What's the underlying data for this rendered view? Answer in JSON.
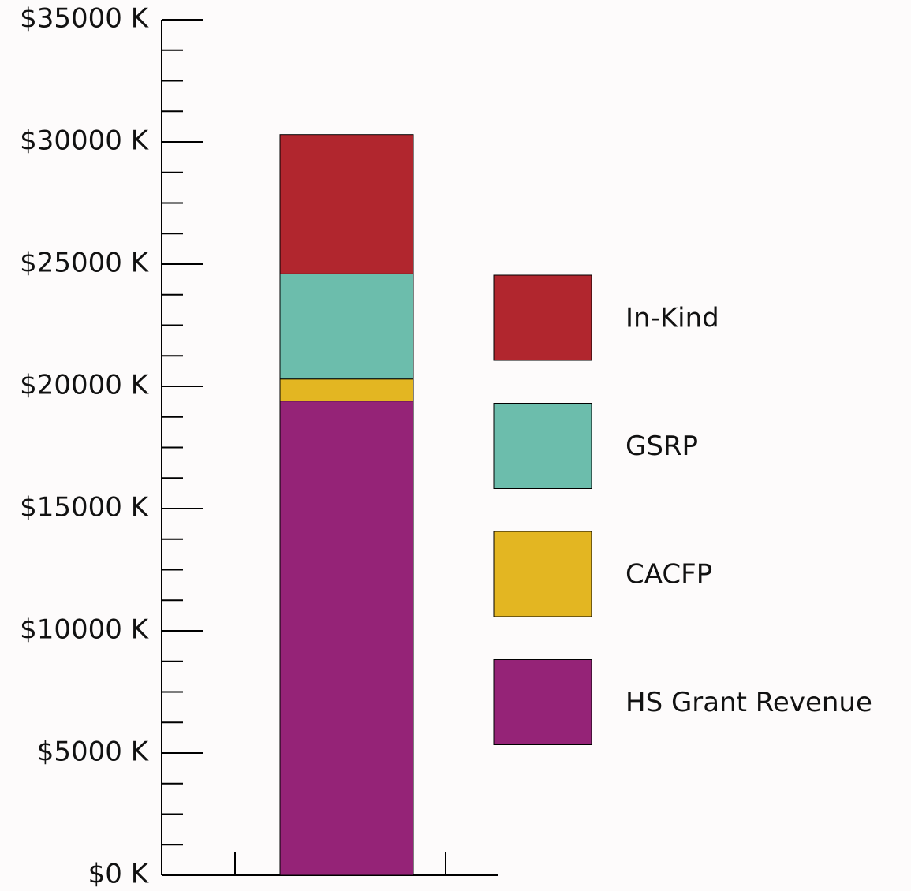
{
  "chart_data": {
    "type": "stacked-bar",
    "categories": [
      null
    ],
    "series": [
      {
        "name": "HS Grant Revenue",
        "color": "#952377",
        "values": [
          19400
        ]
      },
      {
        "name": "CACFP",
        "color": "#e3b622",
        "values": [
          900
        ]
      },
      {
        "name": "GSRP",
        "color": "#6cbdac",
        "values": [
          4300
        ]
      },
      {
        "name": "In-Kind",
        "color": "#b1262e",
        "values": [
          5700
        ]
      }
    ],
    "ylim": [
      0,
      35000
    ],
    "yticks": [
      {
        "value": 0,
        "label": "$0 K"
      },
      {
        "value": 5000,
        "label": "$5000 K"
      },
      {
        "value": 10000,
        "label": "$10000 K"
      },
      {
        "value": 15000,
        "label": "$15000 K"
      },
      {
        "value": 20000,
        "label": "$20000 K"
      },
      {
        "value": 25000,
        "label": "$25000 K"
      },
      {
        "value": 30000,
        "label": "$30000 K"
      },
      {
        "value": 35000,
        "label": "$35000 K"
      }
    ],
    "legend": "right"
  }
}
